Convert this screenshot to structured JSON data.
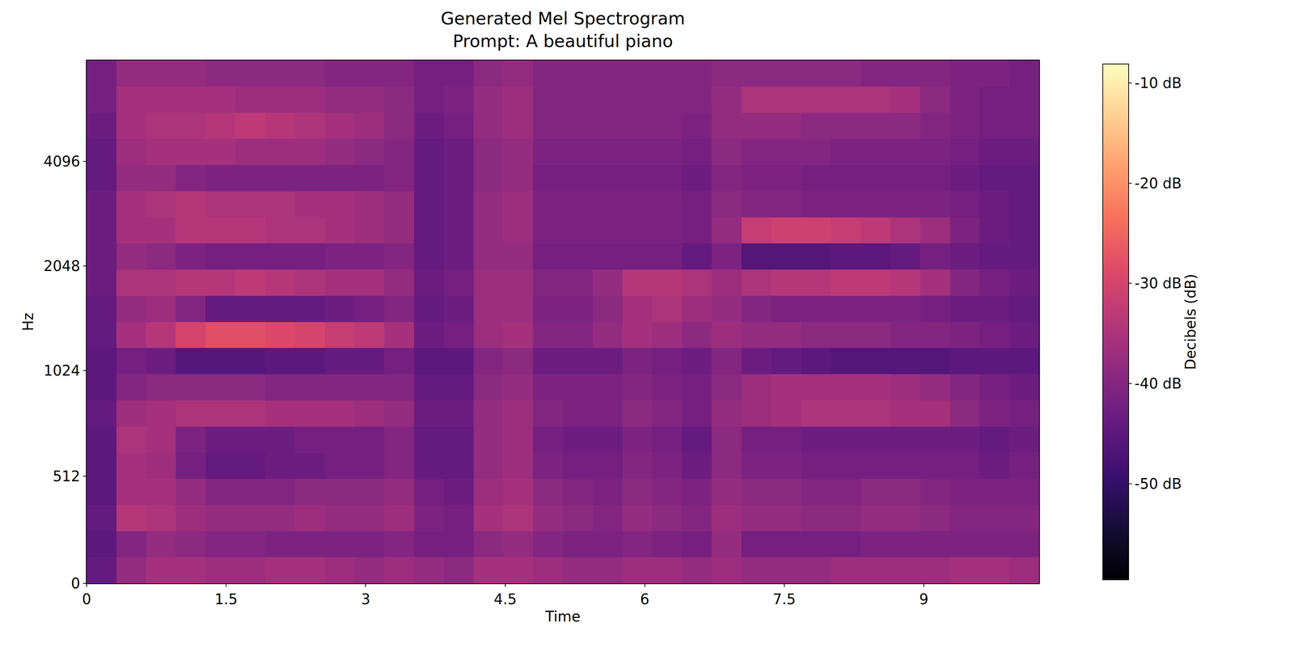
{
  "chart_data": {
    "type": "heatmap",
    "title": "Generated Mel Spectrogram\nPrompt: A beautiful piano",
    "x_label": "Time",
    "y_label": "Hz",
    "y_scale": "mel",
    "xlim": [
      0,
      10.24
    ],
    "xticks": [
      0,
      1.5,
      3,
      4.5,
      6,
      7.5,
      9
    ],
    "ylim": [
      0,
      8000
    ],
    "yticks": [
      0,
      512,
      1024,
      2048,
      4096
    ],
    "grid": false,
    "x_bins": [
      0,
      0.32,
      0.64,
      0.96,
      1.28,
      1.6,
      1.92,
      2.24,
      2.56,
      2.88,
      3.2,
      3.52,
      3.84,
      4.16,
      4.48,
      4.8,
      5.12,
      5.44,
      5.76,
      6.08,
      6.4,
      6.72,
      7.04,
      7.36,
      7.68,
      8,
      8.32,
      8.64,
      8.96,
      9.28,
      9.6,
      9.92,
      10.24
    ],
    "y_bins": [
      0,
      125,
      250,
      375,
      500,
      625,
      750,
      875,
      1000,
      1189,
      1414,
      1682,
      2000,
      2378,
      2828,
      3364,
      4000,
      4757,
      5657,
      6727,
      8000
    ],
    "cells": [
      [
        -44,
        -38,
        -36,
        -36,
        -37,
        -37,
        -36,
        -36,
        -37,
        -38,
        -37,
        -38,
        -39,
        -36,
        -36,
        -37,
        -38,
        -38,
        -37,
        -37,
        -38,
        -37,
        -38,
        -38,
        -38,
        -37,
        -37,
        -37,
        -37,
        -36,
        -36,
        -37
      ],
      [
        -45,
        -40,
        -38,
        -39,
        -40,
        -40,
        -41,
        -41,
        -41,
        -41,
        -40,
        -42,
        -42,
        -39,
        -38,
        -40,
        -41,
        -41,
        -40,
        -41,
        -42,
        -38,
        -42,
        -42,
        -42,
        -42,
        -41,
        -41,
        -41,
        -41,
        -41,
        -41
      ],
      [
        -44,
        -34,
        -35,
        -37,
        -38,
        -38,
        -38,
        -37,
        -38,
        -38,
        -37,
        -41,
        -42,
        -36,
        -35,
        -38,
        -39,
        -40,
        -38,
        -39,
        -40,
        -37,
        -38,
        -38,
        -39,
        -39,
        -38,
        -38,
        -39,
        -40,
        -40,
        -40
      ],
      [
        -45,
        -36,
        -36,
        -38,
        -40,
        -40,
        -40,
        -39,
        -39,
        -39,
        -38,
        -42,
        -43,
        -37,
        -36,
        -39,
        -40,
        -41,
        -39,
        -40,
        -41,
        -38,
        -39,
        -39,
        -40,
        -40,
        -39,
        -39,
        -40,
        -41,
        -41,
        -41
      ],
      [
        -45,
        -36,
        -37,
        -42,
        -44,
        -44,
        -43,
        -43,
        -42,
        -42,
        -40,
        -44,
        -44,
        -38,
        -37,
        -41,
        -42,
        -42,
        -40,
        -41,
        -43,
        -39,
        -41,
        -41,
        -42,
        -42,
        -42,
        -42,
        -42,
        -42,
        -43,
        -42
      ],
      [
        -45,
        -35,
        -36,
        -41,
        -43,
        -43,
        -43,
        -42,
        -42,
        -42,
        -40,
        -44,
        -44,
        -38,
        -37,
        -42,
        -43,
        -43,
        -41,
        -42,
        -44,
        -39,
        -42,
        -42,
        -43,
        -43,
        -43,
        -43,
        -43,
        -43,
        -44,
        -43
      ],
      [
        -44,
        -37,
        -36,
        -35,
        -35,
        -35,
        -36,
        -36,
        -36,
        -37,
        -38,
        -43,
        -43,
        -38,
        -37,
        -40,
        -41,
        -41,
        -39,
        -40,
        -42,
        -38,
        -37,
        -36,
        -35,
        -35,
        -35,
        -36,
        -36,
        -39,
        -41,
        -42
      ],
      [
        -45,
        -40,
        -39,
        -39,
        -39,
        -39,
        -40,
        -40,
        -40,
        -40,
        -40,
        -44,
        -44,
        -39,
        -38,
        -41,
        -41,
        -41,
        -40,
        -41,
        -42,
        -39,
        -37,
        -36,
        -36,
        -36,
        -36,
        -37,
        -38,
        -40,
        -42,
        -43
      ],
      [
        -45,
        -42,
        -43,
        -46,
        -46,
        -46,
        -45,
        -45,
        -44,
        -44,
        -42,
        -45,
        -45,
        -40,
        -39,
        -43,
        -43,
        -43,
        -41,
        -42,
        -43,
        -40,
        -43,
        -44,
        -45,
        -46,
        -46,
        -46,
        -46,
        -45,
        -45,
        -45
      ],
      [
        -44,
        -36,
        -34,
        -30,
        -28,
        -28,
        -29,
        -30,
        -32,
        -33,
        -36,
        -43,
        -42,
        -37,
        -36,
        -40,
        -40,
        -38,
        -36,
        -37,
        -39,
        -37,
        -38,
        -38,
        -39,
        -39,
        -39,
        -40,
        -40,
        -41,
        -42,
        -43
      ],
      [
        -44,
        -38,
        -37,
        -40,
        -44,
        -44,
        -44,
        -44,
        -43,
        -42,
        -40,
        -44,
        -43,
        -37,
        -37,
        -41,
        -41,
        -39,
        -36,
        -35,
        -37,
        -38,
        -40,
        -41,
        -41,
        -41,
        -41,
        -41,
        -42,
        -43,
        -43,
        -44
      ],
      [
        -43,
        -35,
        -35,
        -34,
        -34,
        -33,
        -34,
        -35,
        -36,
        -36,
        -38,
        -43,
        -42,
        -37,
        -37,
        -40,
        -40,
        -38,
        -34,
        -34,
        -35,
        -37,
        -35,
        -34,
        -34,
        -33,
        -33,
        -34,
        -36,
        -40,
        -42,
        -43
      ],
      [
        -43,
        -38,
        -39,
        -41,
        -42,
        -42,
        -42,
        -42,
        -41,
        -41,
        -40,
        -44,
        -43,
        -38,
        -38,
        -42,
        -42,
        -42,
        -42,
        -42,
        -44,
        -41,
        -46,
        -46,
        -46,
        -45,
        -45,
        -44,
        -42,
        -43,
        -44,
        -44
      ],
      [
        -43,
        -36,
        -36,
        -34,
        -34,
        -34,
        -35,
        -35,
        -36,
        -37,
        -38,
        -44,
        -43,
        -38,
        -37,
        -41,
        -41,
        -41,
        -41,
        -41,
        -42,
        -38,
        -32,
        -31,
        -31,
        -32,
        -33,
        -35,
        -37,
        -41,
        -43,
        -44
      ],
      [
        -43,
        -36,
        -35,
        -34,
        -35,
        -35,
        -35,
        -36,
        -36,
        -37,
        -38,
        -44,
        -43,
        -38,
        -37,
        -41,
        -41,
        -41,
        -41,
        -41,
        -42,
        -39,
        -40,
        -40,
        -41,
        -41,
        -41,
        -41,
        -41,
        -42,
        -43,
        -44
      ],
      [
        -44,
        -38,
        -38,
        -40,
        -41,
        -41,
        -41,
        -41,
        -41,
        -41,
        -40,
        -44,
        -43,
        -39,
        -38,
        -42,
        -42,
        -42,
        -42,
        -42,
        -43,
        -40,
        -41,
        -41,
        -42,
        -42,
        -42,
        -42,
        -42,
        -43,
        -44,
        -44
      ],
      [
        -44,
        -37,
        -36,
        -36,
        -36,
        -37,
        -37,
        -37,
        -38,
        -39,
        -40,
        -44,
        -43,
        -39,
        -38,
        -41,
        -41,
        -41,
        -41,
        -41,
        -42,
        -39,
        -40,
        -40,
        -40,
        -41,
        -41,
        -41,
        -41,
        -42,
        -43,
        -43
      ],
      [
        -43,
        -36,
        -35,
        -35,
        -34,
        -33,
        -34,
        -35,
        -36,
        -37,
        -39,
        -43,
        -42,
        -38,
        -37,
        -40,
        -40,
        -40,
        -40,
        -40,
        -41,
        -38,
        -38,
        -38,
        -39,
        -39,
        -39,
        -39,
        -40,
        -41,
        -42,
        -42
      ],
      [
        -42,
        -36,
        -36,
        -36,
        -36,
        -37,
        -37,
        -37,
        -38,
        -38,
        -39,
        -42,
        -41,
        -38,
        -37,
        -40,
        -40,
        -40,
        -40,
        -40,
        -40,
        -38,
        -35,
        -35,
        -35,
        -35,
        -35,
        -36,
        -39,
        -41,
        -42,
        -42
      ],
      [
        -42,
        -38,
        -38,
        -38,
        -39,
        -39,
        -39,
        -39,
        -40,
        -40,
        -40,
        -42,
        -42,
        -39,
        -38,
        -40,
        -40,
        -40,
        -40,
        -40,
        -40,
        -39,
        -39,
        -39,
        -39,
        -39,
        -40,
        -40,
        -40,
        -41,
        -41,
        -42
      ]
    ],
    "colorbar": {
      "title": "Decibels (dB)",
      "range": [
        -59.6,
        -8.1
      ],
      "ticks": [
        {
          "value": -10,
          "label": "-10 dB"
        },
        {
          "value": -20,
          "label": "-20 dB"
        },
        {
          "value": -30,
          "label": "-30 dB"
        },
        {
          "value": -40,
          "label": "-40 dB"
        },
        {
          "value": -50,
          "label": "-50 dB"
        }
      ]
    },
    "color": "magma"
  }
}
